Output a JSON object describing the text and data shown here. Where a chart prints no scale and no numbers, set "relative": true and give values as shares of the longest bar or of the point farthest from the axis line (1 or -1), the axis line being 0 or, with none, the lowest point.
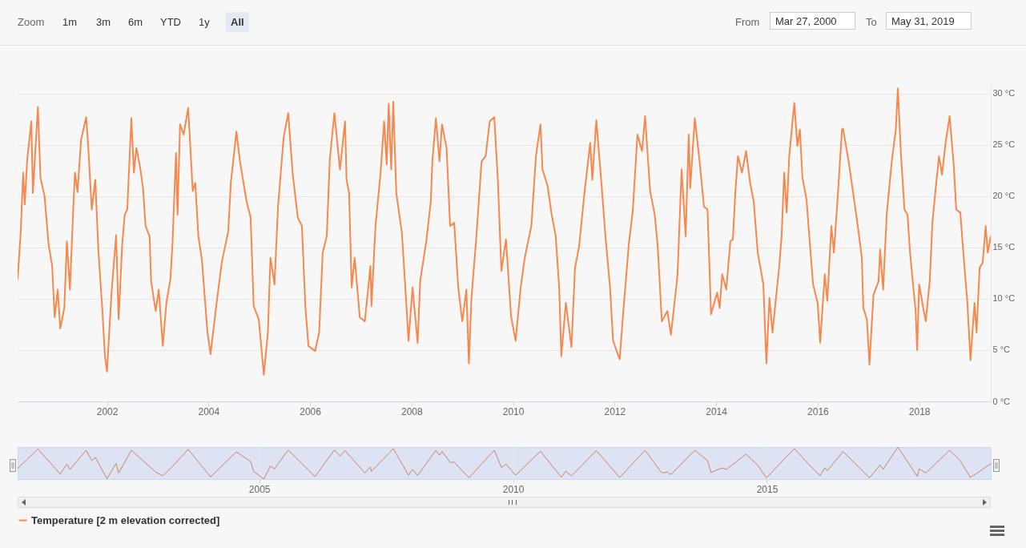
{
  "chart_data": [
    {
      "type": "line",
      "annotations": [
        "Zoom",
        "1m",
        "3m",
        "6m",
        "YTD",
        "1y",
        "All",
        "From",
        "Mar 27, 2000",
        "To",
        "May 31, 2019"
      ],
      "x": [
        2000.24,
        2000.3,
        2000.35,
        2000.38,
        2000.43,
        2000.51,
        2000.54,
        2000.64,
        2000.69,
        2000.77,
        2000.85,
        2000.92,
        2000.97,
        2001.03,
        2001.08,
        2001.16,
        2001.21,
        2001.27,
        2001.34,
        2001.37,
        2001.42,
        2001.49,
        2001.59,
        2001.63,
        2001.7,
        2001.77,
        2001.83,
        2001.91,
        2001.96,
        2002.0,
        2002.09,
        2002.18,
        2002.23,
        2002.3,
        2002.35,
        2002.4,
        2002.48,
        2002.53,
        2002.58,
        2002.65,
        2002.71,
        2002.76,
        2002.84,
        2002.87,
        2002.96,
        2003.02,
        2003.1,
        2003.17,
        2003.25,
        2003.29,
        2003.36,
        2003.39,
        2003.44,
        2003.51,
        2003.6,
        2003.69,
        2003.74,
        2003.8,
        2003.87,
        2003.98,
        2004.04,
        2004.16,
        2004.26,
        2004.39,
        2004.44,
        2004.55,
        2004.62,
        2004.75,
        2004.83,
        2004.89,
        2004.99,
        2005.09,
        2005.17,
        2005.22,
        2005.3,
        2005.37,
        2005.48,
        2005.57,
        2005.66,
        2005.76,
        2005.84,
        2005.91,
        2005.97,
        2006.1,
        2006.18,
        2006.25,
        2006.33,
        2006.39,
        2006.48,
        2006.59,
        2006.69,
        2006.72,
        2006.77,
        2006.82,
        2006.88,
        2006.98,
        2007.08,
        2007.19,
        2007.21,
        2007.29,
        2007.39,
        2007.46,
        2007.51,
        2007.55,
        2007.6,
        2007.64,
        2007.7,
        2007.81,
        2007.89,
        2007.94,
        2008.02,
        2008.12,
        2008.17,
        2008.29,
        2008.38,
        2008.41,
        2008.48,
        2008.55,
        2008.6,
        2008.69,
        2008.76,
        2008.84,
        2008.92,
        2009.0,
        2009.08,
        2009.13,
        2009.18,
        2009.27,
        2009.38,
        2009.46,
        2009.54,
        2009.63,
        2009.7,
        2009.77,
        2009.86,
        2009.96,
        2010.05,
        2010.15,
        2010.23,
        2010.36,
        2010.45,
        2010.54,
        2010.58,
        2010.68,
        2010.76,
        2010.84,
        2010.91,
        2010.95,
        2011.04,
        2011.15,
        2011.22,
        2011.3,
        2011.41,
        2011.52,
        2011.56,
        2011.64,
        2011.74,
        2011.82,
        2011.91,
        2011.97,
        2012.1,
        2012.18,
        2012.28,
        2012.36,
        2012.45,
        2012.54,
        2012.6,
        2012.7,
        2012.79,
        2012.85,
        2012.93,
        2013.04,
        2013.11,
        2013.22,
        2013.24,
        2013.32,
        2013.4,
        2013.46,
        2013.49,
        2013.58,
        2013.67,
        2013.76,
        2013.83,
        2013.9,
        2014.02,
        2014.07,
        2014.12,
        2014.2,
        2014.28,
        2014.33,
        2014.38,
        2014.43,
        2014.51,
        2014.59,
        2014.67,
        2014.74,
        2014.82,
        2014.93,
        2014.99,
        2015.05,
        2015.11,
        2015.18,
        2015.24,
        2015.29,
        2015.34,
        2015.39,
        2015.44,
        2015.54,
        2015.6,
        2015.65,
        2015.7,
        2015.78,
        2015.83,
        2015.91,
        2016.0,
        2016.05,
        2016.14,
        2016.19,
        2016.27,
        2016.32,
        2016.4,
        2016.48,
        2016.5,
        2016.61,
        2016.68,
        2016.79,
        2016.87,
        2016.9,
        2016.97,
        2017.02,
        2017.1,
        2017.2,
        2017.23,
        2017.29,
        2017.36,
        2017.46,
        2017.54,
        2017.58,
        2017.64,
        2017.71,
        2017.77,
        2017.82,
        2017.93,
        2017.96,
        2018.0,
        2018.08,
        2018.13,
        2018.21,
        2018.26,
        2018.31,
        2018.39,
        2018.45,
        2018.52,
        2018.6,
        2018.68,
        2018.73,
        2018.81,
        2018.87,
        2018.95,
        2019.01,
        2019.09,
        2019.13,
        2019.19,
        2019.25,
        2019.31,
        2019.35,
        2019.41
      ],
      "series": [
        {
          "name": "Temperature [2 m elevation corrected]",
          "color": "#f5894d",
          "values": [
            11.9,
            16.4,
            22.3,
            19.2,
            23.6,
            27.3,
            20.3,
            28.7,
            21.8,
            20.0,
            15.3,
            13.2,
            8.2,
            10.9,
            7.1,
            9.1,
            15.6,
            10.9,
            19.2,
            22.3,
            20.4,
            25.5,
            27.7,
            24.9,
            18.7,
            21.6,
            14.8,
            8.8,
            4.4,
            2.9,
            10.6,
            16.2,
            8.0,
            15.3,
            18.2,
            18.7,
            27.6,
            22.3,
            24.7,
            22.9,
            20.8,
            17.1,
            16.1,
            11.7,
            8.8,
            10.9,
            5.4,
            9.6,
            11.9,
            15.3,
            24.2,
            18.2,
            27.0,
            26.0,
            28.6,
            20.5,
            21.3,
            16.1,
            13.8,
            6.7,
            4.6,
            9.6,
            13.5,
            16.6,
            21.3,
            26.3,
            23.4,
            19.5,
            17.9,
            9.3,
            8.0,
            2.6,
            6.7,
            14.0,
            11.4,
            19.0,
            25.7,
            28.1,
            22.1,
            17.9,
            17.1,
            9.1,
            5.4,
            4.9,
            6.7,
            14.5,
            16.1,
            23.6,
            28.1,
            22.6,
            27.3,
            21.6,
            20.3,
            11.1,
            14.0,
            8.2,
            7.8,
            13.2,
            9.3,
            17.1,
            22.3,
            27.3,
            23.1,
            29.0,
            22.6,
            29.2,
            20.3,
            16.4,
            10.1,
            5.9,
            11.1,
            5.7,
            11.7,
            15.6,
            19.5,
            23.4,
            27.6,
            23.4,
            27.0,
            24.7,
            17.1,
            17.4,
            11.1,
            7.8,
            10.9,
            3.7,
            10.1,
            15.6,
            23.4,
            23.9,
            27.3,
            27.7,
            21.6,
            12.7,
            15.8,
            8.3,
            5.9,
            11.1,
            14.0,
            17.1,
            23.9,
            27.0,
            22.6,
            21.0,
            18.2,
            16.1,
            10.9,
            4.4,
            9.6,
            5.3,
            13.0,
            15.1,
            20.5,
            25.2,
            21.6,
            27.4,
            21.3,
            16.1,
            11.1,
            5.9,
            4.1,
            9.3,
            15.3,
            18.7,
            26.0,
            24.4,
            27.8,
            20.5,
            18.2,
            15.1,
            7.8,
            8.8,
            6.5,
            11.4,
            12.4,
            22.6,
            16.1,
            26.0,
            20.8,
            27.6,
            23.6,
            19.0,
            18.7,
            8.5,
            10.6,
            9.1,
            12.4,
            10.9,
            15.6,
            15.8,
            20.5,
            23.9,
            22.3,
            24.4,
            21.3,
            19.5,
            14.5,
            11.4,
            3.7,
            10.1,
            6.7,
            10.1,
            13.0,
            16.1,
            22.3,
            18.4,
            23.9,
            29.1,
            24.9,
            26.5,
            21.8,
            19.7,
            16.4,
            11.4,
            9.6,
            5.7,
            12.4,
            9.8,
            17.1,
            14.5,
            20.3,
            26.5,
            26.6,
            23.4,
            21.0,
            17.1,
            14.0,
            9.1,
            8.0,
            3.6,
            10.4,
            11.7,
            14.8,
            10.9,
            18.2,
            23.4,
            26.5,
            30.5,
            24.2,
            18.7,
            18.2,
            14.5,
            8.8,
            5.0,
            11.4,
            9.1,
            7.8,
            11.9,
            17.4,
            20.0,
            23.9,
            22.1,
            25.2,
            27.8,
            23.1,
            18.7,
            18.4,
            14.5,
            9.6,
            4.0,
            9.6,
            6.7,
            13.0,
            13.5,
            17.1,
            14.5,
            16.1
          ]
        }
      ],
      "xlim": [
        2000.24,
        2019.41
      ],
      "xticks": [
        2002,
        2004,
        2006,
        2008,
        2010,
        2012,
        2014,
        2016,
        2018
      ],
      "ylim": [
        0,
        31
      ],
      "yticks": [
        {
          "value": 0,
          "label": "0 °C"
        },
        {
          "value": 5,
          "label": "5 °C"
        },
        {
          "value": 10,
          "label": "10 °C"
        },
        {
          "value": 15,
          "label": "15 °C"
        },
        {
          "value": 20,
          "label": "20 °C"
        },
        {
          "value": 25,
          "label": "25 °C"
        },
        {
          "value": 30,
          "label": "30 °C"
        }
      ],
      "grid": "y",
      "legend": "bottom"
    },
    {
      "type": "line",
      "x": [
        2000.24,
        2000.64,
        2001.08,
        2001.21,
        2001.27,
        2001.59,
        2001.7,
        2001.77,
        2002.0,
        2002.18,
        2002.23,
        2002.48,
        2002.96,
        2003.1,
        2003.25,
        2003.6,
        2004.04,
        2004.55,
        2004.83,
        2004.89,
        2005.09,
        2005.22,
        2005.3,
        2005.57,
        2006.1,
        2006.48,
        2006.59,
        2006.69,
        2007.08,
        2007.19,
        2007.21,
        2007.64,
        2007.94,
        2008.02,
        2008.12,
        2008.48,
        2008.55,
        2008.6,
        2008.76,
        2008.84,
        2009.13,
        2009.63,
        2009.77,
        2009.86,
        2010.05,
        2010.54,
        2010.95,
        2011.04,
        2011.15,
        2011.64,
        2012.1,
        2012.6,
        2012.93,
        2013.04,
        2013.11,
        2013.58,
        2013.83,
        2013.9,
        2014.12,
        2014.2,
        2014.59,
        2014.82,
        2014.99,
        2015.54,
        2015.91,
        2016.05,
        2016.14,
        2016.19,
        2016.5,
        2017.02,
        2017.23,
        2017.29,
        2017.58,
        2017.96,
        2018.0,
        2018.13,
        2018.6,
        2018.81,
        2019.01,
        2019.41
      ],
      "series": [
        {
          "color": "#c9826a",
          "values": [
            0.33,
            0.94,
            0.16,
            0.47,
            0.3,
            0.9,
            0.58,
            0.68,
            0.01,
            0.49,
            0.19,
            0.9,
            0.22,
            0.1,
            0.33,
            0.93,
            0.07,
            0.85,
            0.55,
            0.24,
            0,
            0.41,
            0.32,
            0.91,
            0.08,
            0.91,
            0.72,
            0.89,
            0.19,
            0.38,
            0.24,
            0.95,
            0.12,
            0.3,
            0.11,
            0.9,
            0.75,
            0.87,
            0.52,
            0.53,
            0.04,
            0.9,
            0.36,
            0.47,
            0.12,
            0.87,
            0.06,
            0.25,
            0.1,
            0.89,
            0.05,
            0.9,
            0.19,
            0.22,
            0.14,
            0.9,
            0.58,
            0.21,
            0.35,
            0.3,
            0.78,
            0.43,
            0.04,
            0.95,
            0.32,
            0.11,
            0.35,
            0.26,
            0.86,
            0.04,
            0.44,
            0.3,
            1,
            0.09,
            0.32,
            0.19,
            0.9,
            0.57,
            0.05,
            0.48
          ]
        }
      ],
      "xlim": [
        2000.24,
        2019.41
      ],
      "xticks": [
        2005,
        2010,
        2015
      ],
      "relative": true,
      "grid": "x",
      "tick_labels": "x"
    }
  ]
}
